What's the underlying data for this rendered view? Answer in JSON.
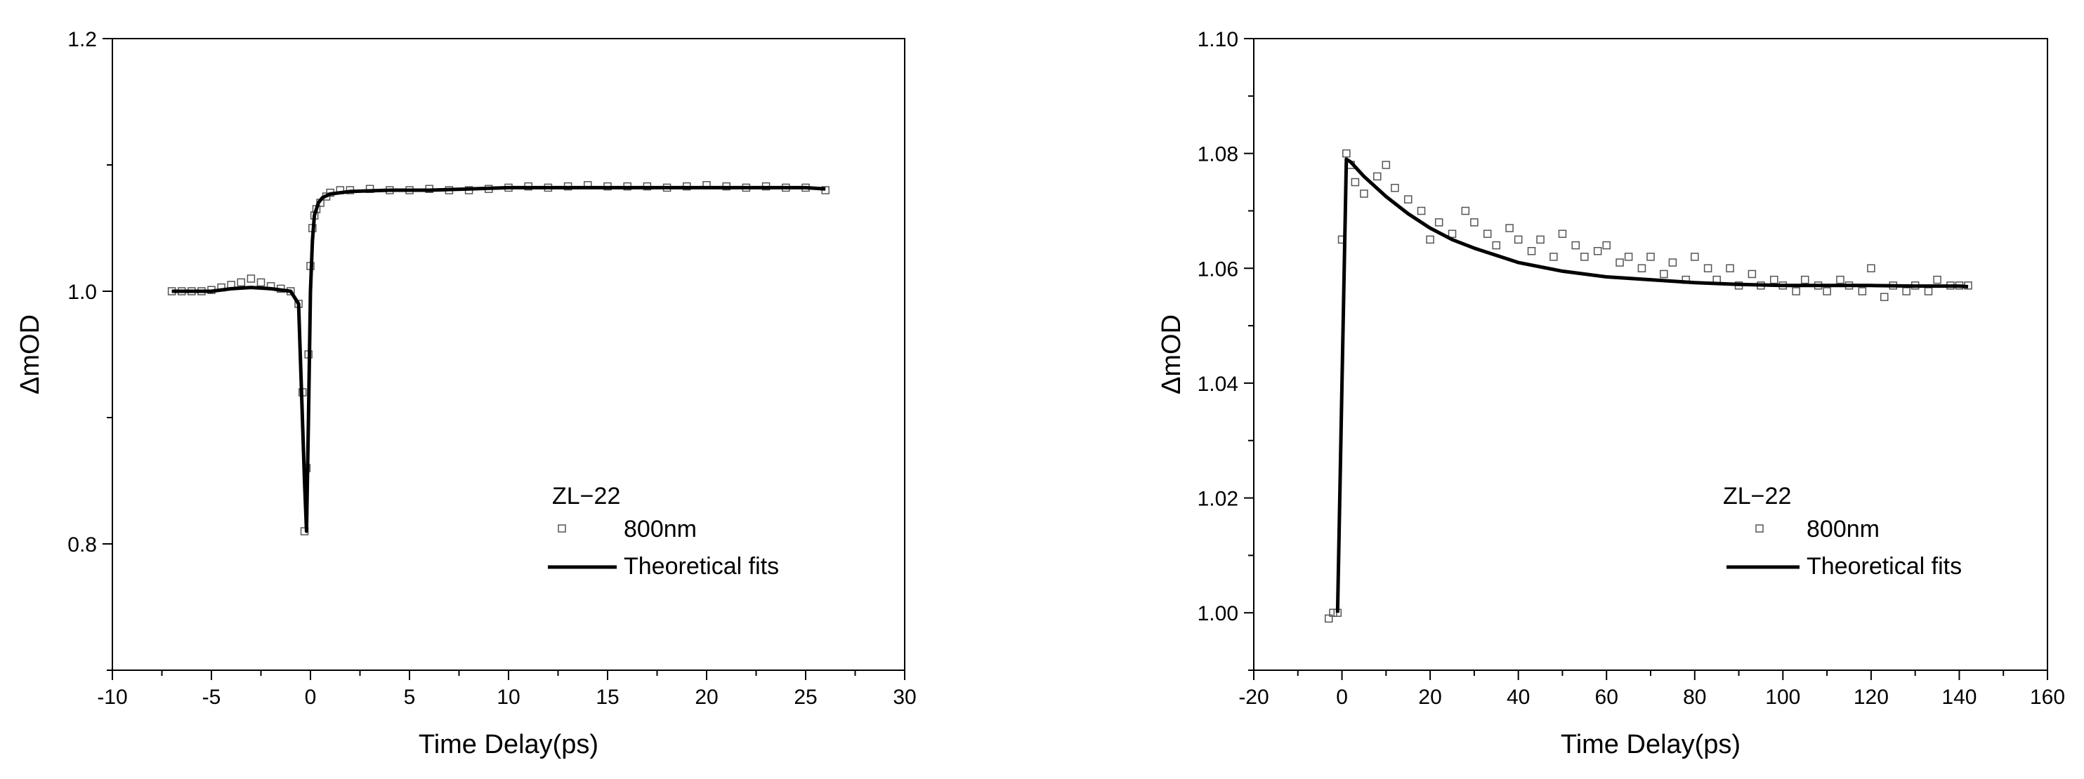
{
  "chart_data": [
    {
      "type": "scatter",
      "title": "",
      "xlabel": "Time Delay(ps)",
      "ylabel": "ΔmOD",
      "xlim": [
        -10,
        30
      ],
      "ylim": [
        0.7,
        1.2
      ],
      "x_ticks": [
        -10,
        -5,
        0,
        5,
        10,
        15,
        20,
        25,
        30
      ],
      "x_tick_labels": [
        "-10",
        "-5",
        "0",
        "5",
        "10",
        "15",
        "20",
        "25",
        "30"
      ],
      "y_ticks": [
        0.8,
        1.0,
        1.2
      ],
      "y_tick_labels": [
        "0.8",
        "1.0",
        "1.2"
      ],
      "grid": false,
      "legend": {
        "position": "lower-right",
        "title": "ZL−22",
        "entries": [
          "800nm",
          "Theoretical fits"
        ]
      },
      "series": [
        {
          "name": "800nm",
          "kind": "scatter",
          "marker": "open-square",
          "x": [
            -7,
            -6.5,
            -6,
            -5.5,
            -5,
            -4.5,
            -4,
            -3.5,
            -3,
            -2.5,
            -2,
            -1.5,
            -1,
            -0.6,
            -0.4,
            -0.3,
            -0.2,
            -0.1,
            0,
            0.1,
            0.2,
            0.3,
            0.5,
            0.8,
            1,
            1.5,
            2,
            3,
            4,
            5,
            6,
            7,
            8,
            9,
            10,
            11,
            12,
            13,
            14,
            15,
            16,
            17,
            18,
            19,
            20,
            21,
            22,
            23,
            24,
            25,
            26
          ],
          "y": [
            1.0,
            1.0,
            1.0,
            1.0,
            1.001,
            1.003,
            1.005,
            1.007,
            1.01,
            1.007,
            1.004,
            1.002,
            1.0,
            0.99,
            0.92,
            0.81,
            0.86,
            0.95,
            1.02,
            1.05,
            1.06,
            1.065,
            1.07,
            1.075,
            1.078,
            1.08,
            1.08,
            1.081,
            1.08,
            1.08,
            1.081,
            1.08,
            1.08,
            1.081,
            1.082,
            1.083,
            1.082,
            1.083,
            1.084,
            1.083,
            1.083,
            1.083,
            1.082,
            1.083,
            1.084,
            1.083,
            1.082,
            1.083,
            1.082,
            1.082,
            1.08
          ]
        },
        {
          "name": "Theoretical fits",
          "kind": "line",
          "x": [
            -7,
            -6,
            -5,
            -4,
            -3,
            -2,
            -1,
            -0.6,
            -0.3,
            -0.2,
            -0.1,
            0,
            0.1,
            0.2,
            0.4,
            0.6,
            1,
            2,
            4,
            6,
            8,
            10,
            15,
            20,
            25,
            26
          ],
          "y": [
            1.0,
            1.0,
            1.0,
            1.002,
            1.003,
            1.002,
            1.0,
            0.99,
            0.85,
            0.81,
            0.9,
            1.0,
            1.04,
            1.06,
            1.07,
            1.074,
            1.077,
            1.079,
            1.08,
            1.08,
            1.081,
            1.082,
            1.082,
            1.082,
            1.082,
            1.081
          ]
        }
      ]
    },
    {
      "type": "scatter",
      "title": "",
      "xlabel": "Time Delay(ps)",
      "ylabel": "ΔmOD",
      "xlim": [
        -20,
        160
      ],
      "ylim": [
        0.99,
        1.1
      ],
      "x_ticks": [
        -20,
        0,
        20,
        40,
        60,
        80,
        100,
        120,
        140,
        160
      ],
      "x_tick_labels": [
        "-20",
        "0",
        "20",
        "40",
        "60",
        "80",
        "100",
        "120",
        "140",
        "160"
      ],
      "y_ticks": [
        1.0,
        1.02,
        1.04,
        1.06,
        1.08,
        1.1
      ],
      "y_tick_labels": [
        "1.00",
        "1.02",
        "1.04",
        "1.06",
        "1.08",
        "1.10"
      ],
      "grid": false,
      "legend": {
        "position": "lower-right",
        "title": "ZL−22",
        "entries": [
          "800nm",
          "Theoretical fits"
        ]
      },
      "series": [
        {
          "name": "800nm",
          "kind": "scatter",
          "marker": "open-square",
          "x": [
            -3,
            -2,
            -1,
            0,
            1,
            2,
            3,
            5,
            8,
            10,
            12,
            15,
            18,
            20,
            22,
            25,
            28,
            30,
            33,
            35,
            38,
            40,
            43,
            45,
            48,
            50,
            53,
            55,
            58,
            60,
            63,
            65,
            68,
            70,
            73,
            75,
            78,
            80,
            83,
            85,
            88,
            90,
            93,
            95,
            98,
            100,
            103,
            105,
            108,
            110,
            113,
            115,
            118,
            120,
            123,
            125,
            128,
            130,
            133,
            135,
            138,
            140,
            142
          ],
          "y": [
            0.999,
            1.0,
            1.0,
            1.065,
            1.08,
            1.078,
            1.075,
            1.073,
            1.076,
            1.078,
            1.074,
            1.072,
            1.07,
            1.065,
            1.068,
            1.066,
            1.07,
            1.068,
            1.066,
            1.064,
            1.067,
            1.065,
            1.063,
            1.065,
            1.062,
            1.066,
            1.064,
            1.062,
            1.063,
            1.064,
            1.061,
            1.062,
            1.06,
            1.062,
            1.059,
            1.061,
            1.058,
            1.062,
            1.06,
            1.058,
            1.06,
            1.057,
            1.059,
            1.057,
            1.058,
            1.057,
            1.056,
            1.058,
            1.057,
            1.056,
            1.058,
            1.057,
            1.056,
            1.06,
            1.055,
            1.057,
            1.056,
            1.057,
            1.056,
            1.058,
            1.057,
            1.057,
            1.057
          ]
        },
        {
          "name": "Theoretical fits",
          "kind": "line",
          "x": [
            -1,
            0,
            1,
            2,
            5,
            10,
            15,
            20,
            25,
            30,
            40,
            50,
            60,
            70,
            80,
            90,
            100,
            110,
            120,
            130,
            140,
            142
          ],
          "y": [
            1.0,
            1.04,
            1.079,
            1.0785,
            1.076,
            1.0725,
            1.0695,
            1.067,
            1.065,
            1.0635,
            1.061,
            1.0595,
            1.0585,
            1.058,
            1.0575,
            1.0572,
            1.057,
            1.057,
            1.057,
            1.0569,
            1.0569,
            1.0568
          ]
        }
      ]
    }
  ]
}
